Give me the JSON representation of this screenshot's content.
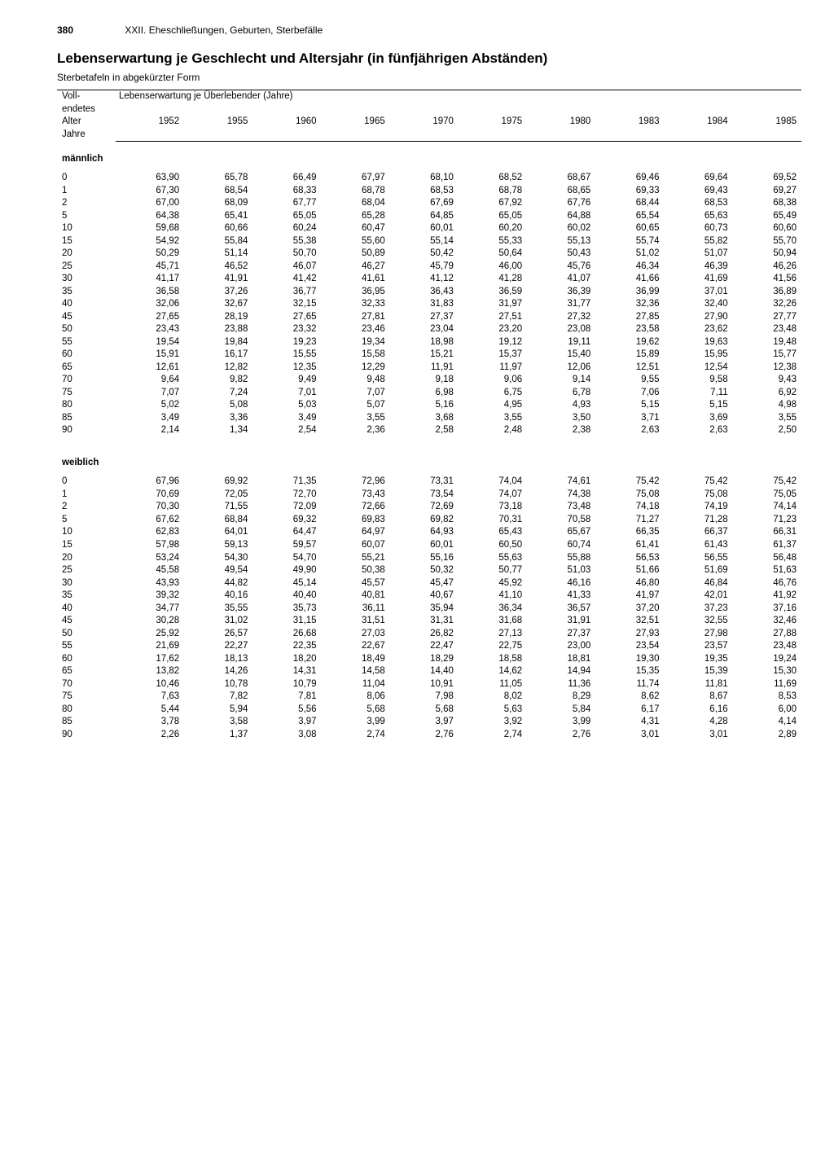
{
  "page_number": "380",
  "chapter": "XXII. Eheschließungen, Geburten, Sterbefälle",
  "title": "Lebenserwartung je Geschlecht und Altersjahr (in fünfjährigen Abständen)",
  "subtitle": "Sterbetafeln in abgekürzter Form",
  "row_header_lines": [
    "Voll-",
    "endetes",
    "Alter",
    "Jahre"
  ],
  "span_header": "Lebenserwartung je Überlebender (Jahre)",
  "years": [
    "1952",
    "1955",
    "1960",
    "1965",
    "1970",
    "1975",
    "1980",
    "1983",
    "1984",
    "1985"
  ],
  "sections": [
    {
      "label": "männlich",
      "ages": [
        "0",
        "1",
        "2",
        "5",
        "10",
        "15",
        "20",
        "25",
        "30",
        "35",
        "40",
        "45",
        "50",
        "55",
        "60",
        "65",
        "70",
        "75",
        "80",
        "85",
        "90"
      ],
      "rows": [
        [
          "63,90",
          "65,78",
          "66,49",
          "67,97",
          "68,10",
          "68,52",
          "68,67",
          "69,46",
          "69,64",
          "69,52"
        ],
        [
          "67,30",
          "68,54",
          "68,33",
          "68,78",
          "68,53",
          "68,78",
          "68,65",
          "69,33",
          "69,43",
          "69,27"
        ],
        [
          "67,00",
          "68,09",
          "67,77",
          "68,04",
          "67,69",
          "67,92",
          "67,76",
          "68,44",
          "68,53",
          "68,38"
        ],
        [
          "64,38",
          "65,41",
          "65,05",
          "65,28",
          "64,85",
          "65,05",
          "64,88",
          "65,54",
          "65,63",
          "65,49"
        ],
        [
          "59,68",
          "60,66",
          "60,24",
          "60,47",
          "60,01",
          "60,20",
          "60,02",
          "60,65",
          "60,73",
          "60,60"
        ],
        [
          "54,92",
          "55,84",
          "55,38",
          "55,60",
          "55,14",
          "55,33",
          "55,13",
          "55,74",
          "55,82",
          "55,70"
        ],
        [
          "50,29",
          "51,14",
          "50,70",
          "50,89",
          "50,42",
          "50,64",
          "50,43",
          "51,02",
          "51,07",
          "50,94"
        ],
        [
          "45,71",
          "46,52",
          "46,07",
          "46,27",
          "45,79",
          "46,00",
          "45,76",
          "46,34",
          "46,39",
          "46,26"
        ],
        [
          "41,17",
          "41,91",
          "41,42",
          "41,61",
          "41,12",
          "41,28",
          "41,07",
          "41,66",
          "41,69",
          "41,56"
        ],
        [
          "36,58",
          "37,26",
          "36,77",
          "36,95",
          "36,43",
          "36,59",
          "36,39",
          "36,99",
          "37,01",
          "36,89"
        ],
        [
          "32,06",
          "32,67",
          "32,15",
          "32,33",
          "31,83",
          "31,97",
          "31,77",
          "32,36",
          "32,40",
          "32,26"
        ],
        [
          "27,65",
          "28,19",
          "27,65",
          "27,81",
          "27,37",
          "27,51",
          "27,32",
          "27,85",
          "27,90",
          "27,77"
        ],
        [
          "23,43",
          "23,88",
          "23,32",
          "23,46",
          "23,04",
          "23,20",
          "23,08",
          "23,58",
          "23,62",
          "23,48"
        ],
        [
          "19,54",
          "19,84",
          "19,23",
          "19,34",
          "18,98",
          "19,12",
          "19,11",
          "19,62",
          "19,63",
          "19,48"
        ],
        [
          "15,91",
          "16,17",
          "15,55",
          "15,58",
          "15,21",
          "15,37",
          "15,40",
          "15,89",
          "15,95",
          "15,77"
        ],
        [
          "12,61",
          "12,82",
          "12,35",
          "12,29",
          "11,91",
          "11,97",
          "12,06",
          "12,51",
          "12,54",
          "12,38"
        ],
        [
          "9,64",
          "9,82",
          "9,49",
          "9,48",
          "9,18",
          "9,06",
          "9,14",
          "9,55",
          "9,58",
          "9,43"
        ],
        [
          "7,07",
          "7,24",
          "7,01",
          "7,07",
          "6,98",
          "6,75",
          "6,78",
          "7,06",
          "7,11",
          "6,92"
        ],
        [
          "5,02",
          "5,08",
          "5,03",
          "5,07",
          "5,16",
          "4,95",
          "4,93",
          "5,15",
          "5,15",
          "4,98"
        ],
        [
          "3,49",
          "3,36",
          "3,49",
          "3,55",
          "3,68",
          "3,55",
          "3,50",
          "3,71",
          "3,69",
          "3,55"
        ],
        [
          "2,14",
          "1,34",
          "2,54",
          "2,36",
          "2,58",
          "2,48",
          "2,38",
          "2,63",
          "2,63",
          "2,50"
        ]
      ]
    },
    {
      "label": "weiblich",
      "ages": [
        "0",
        "1",
        "2",
        "5",
        "10",
        "15",
        "20",
        "25",
        "30",
        "35",
        "40",
        "45",
        "50",
        "55",
        "60",
        "65",
        "70",
        "75",
        "80",
        "85",
        "90"
      ],
      "rows": [
        [
          "67,96",
          "69,92",
          "71,35",
          "72,96",
          "73,31",
          "74,04",
          "74,61",
          "75,42",
          "75,42",
          "75,42"
        ],
        [
          "70,69",
          "72,05",
          "72,70",
          "73,43",
          "73,54",
          "74,07",
          "74,38",
          "75,08",
          "75,08",
          "75,05"
        ],
        [
          "70,30",
          "71,55",
          "72,09",
          "72,66",
          "72,69",
          "73,18",
          "73,48",
          "74,18",
          "74,19",
          "74,14"
        ],
        [
          "67,62",
          "68,84",
          "69,32",
          "69,83",
          "69,82",
          "70,31",
          "70,58",
          "71,27",
          "71,28",
          "71,23"
        ],
        [
          "62,83",
          "64,01",
          "64,47",
          "64,97",
          "64,93",
          "65,43",
          "65,67",
          "66,35",
          "66,37",
          "66,31"
        ],
        [
          "57,98",
          "59,13",
          "59,57",
          "60,07",
          "60,01",
          "60,50",
          "60,74",
          "61,41",
          "61,43",
          "61,37"
        ],
        [
          "53,24",
          "54,30",
          "54,70",
          "55,21",
          "55,16",
          "55,63",
          "55,88",
          "56,53",
          "56,55",
          "56,48"
        ],
        [
          "45,58",
          "49,54",
          "49,90",
          "50,38",
          "50,32",
          "50,77",
          "51,03",
          "51,66",
          "51,69",
          "51,63"
        ],
        [
          "43,93",
          "44,82",
          "45,14",
          "45,57",
          "45,47",
          "45,92",
          "46,16",
          "46,80",
          "46,84",
          "46,76"
        ],
        [
          "39,32",
          "40,16",
          "40,40",
          "40,81",
          "40,67",
          "41,10",
          "41,33",
          "41,97",
          "42,01",
          "41,92"
        ],
        [
          "34,77",
          "35,55",
          "35,73",
          "36,11",
          "35,94",
          "36,34",
          "36,57",
          "37,20",
          "37,23",
          "37,16"
        ],
        [
          "30,28",
          "31,02",
          "31,15",
          "31,51",
          "31,31",
          "31,68",
          "31,91",
          "32,51",
          "32,55",
          "32,46"
        ],
        [
          "25,92",
          "26,57",
          "26,68",
          "27,03",
          "26,82",
          "27,13",
          "27,37",
          "27,93",
          "27,98",
          "27,88"
        ],
        [
          "21,69",
          "22,27",
          "22,35",
          "22,67",
          "22,47",
          "22,75",
          "23,00",
          "23,54",
          "23,57",
          "23,48"
        ],
        [
          "17,62",
          "18,13",
          "18,20",
          "18,49",
          "18,29",
          "18,58",
          "18,81",
          "19,30",
          "19,35",
          "19,24"
        ],
        [
          "13,82",
          "14,26",
          "14,31",
          "14,58",
          "14,40",
          "14,62",
          "14,94",
          "15,35",
          "15,39",
          "15,30"
        ],
        [
          "10,46",
          "10,78",
          "10,79",
          "11,04",
          "10,91",
          "11,05",
          "11,36",
          "11,74",
          "11,81",
          "11,69"
        ],
        [
          "7,63",
          "7,82",
          "7,81",
          "8,06",
          "7,98",
          "8,02",
          "8,29",
          "8,62",
          "8,67",
          "8,53"
        ],
        [
          "5,44",
          "5,94",
          "5,56",
          "5,68",
          "5,68",
          "5,63",
          "5,84",
          "6,17",
          "6,16",
          "6,00"
        ],
        [
          "3,78",
          "3,58",
          "3,97",
          "3,99",
          "3,97",
          "3,92",
          "3,99",
          "4,31",
          "4,28",
          "4,14"
        ],
        [
          "2,26",
          "1,37",
          "3,08",
          "2,74",
          "2,76",
          "2,74",
          "2,76",
          "3,01",
          "3,01",
          "2,89"
        ]
      ]
    }
  ]
}
